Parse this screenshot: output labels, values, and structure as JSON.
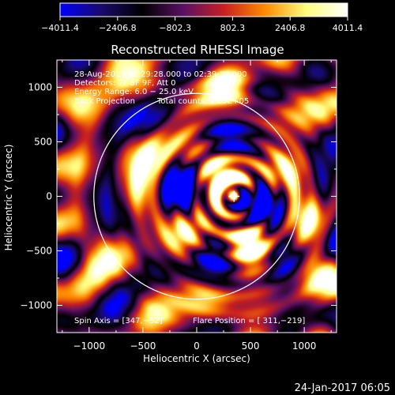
{
  "colorbar": {
    "tick_labels": [
      "−4011.4",
      "−2406.8",
      "−802.3",
      "802.3",
      "2406.8",
      "4011.4"
    ],
    "stops": [
      "#0000ff",
      "#1a0a6a",
      "#000000",
      "#5a1064",
      "#c82020",
      "#ff8c00",
      "#ffff80",
      "#ffffff"
    ]
  },
  "annotations": {
    "time_range": "28-Aug-2014 02:29:28.000 to 02:39:28.000",
    "detectors": "Detectors: 7F 8F 9F, Att 0",
    "energy_range": "Energy Range: 6.0 − 25.0 keV",
    "method": "Back Projection",
    "total_counts": "Total counts: 1.03E+05",
    "spin_axis": "Spin Axis = [347,−52]",
    "flare_position": "Flare Position = [ 311,−219]"
  },
  "timestamp": "24-Jan-2017 06:05",
  "chart_data": {
    "type": "heatmap",
    "title": "Reconstructed RHESSI Image",
    "xlabel": "Heliocentric X (arcsec)",
    "ylabel": "Heliocentric Y (arcsec)",
    "xlim": [
      -1300,
      1300
    ],
    "ylim": [
      -1250,
      1250
    ],
    "x_ticks": [
      -1000,
      -500,
      0,
      500,
      1000
    ],
    "y_ticks": [
      -1000,
      -500,
      0,
      500,
      1000
    ],
    "x_tick_labels": [
      "−1000",
      "−500",
      "0",
      "500",
      "1000"
    ],
    "y_tick_labels": [
      "−1000",
      "−500",
      "0",
      "500",
      "1000"
    ],
    "color_range": [
      -4011.4,
      4011.4
    ],
    "solar_limb_radius_arcsec": 950,
    "solar_limb_center": [
      0,
      0
    ],
    "marker": [
      347,
      0
    ],
    "colors": {
      "limb": "#ffffff",
      "annotation": "#ffffff"
    }
  }
}
